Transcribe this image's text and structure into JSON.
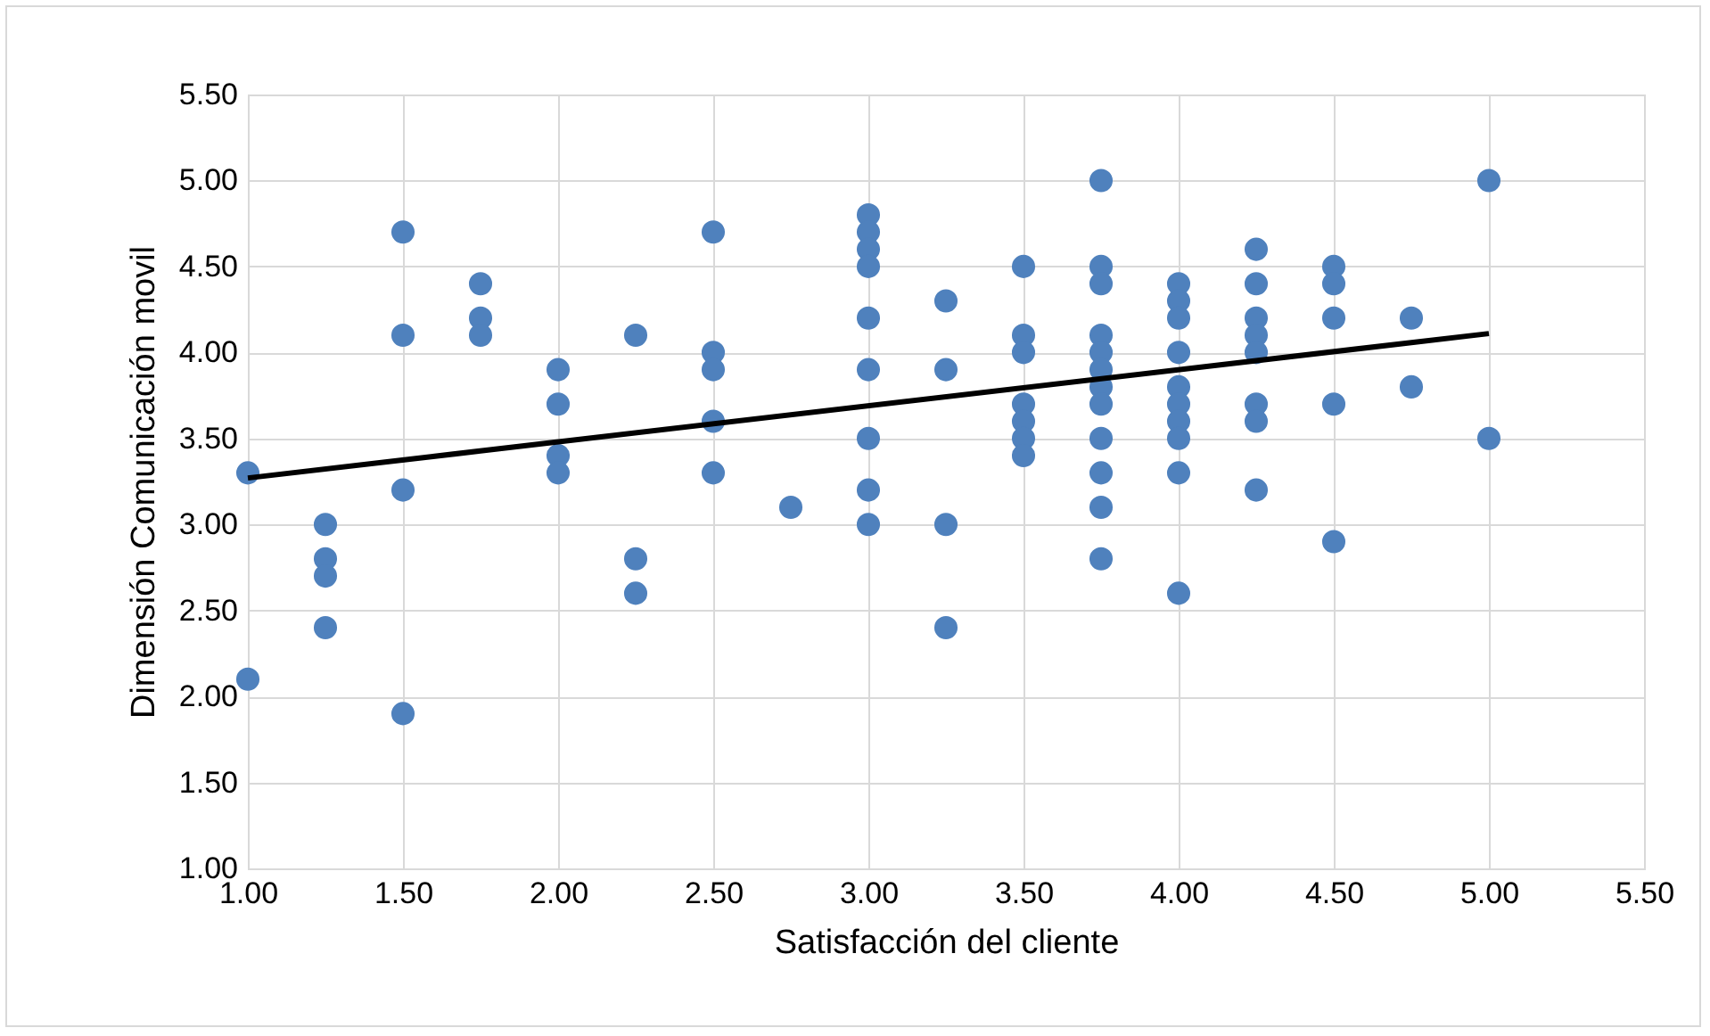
{
  "chart_data": {
    "type": "scatter",
    "xlabel": "Satisfacción del cliente",
    "ylabel": "Dimensión Comunicación movil",
    "xlim": [
      1,
      5.5
    ],
    "ylim": [
      1,
      5.5
    ],
    "xticks": [
      {
        "value": 1,
        "label": "1.00"
      },
      {
        "value": 1.5,
        "label": "1.50"
      },
      {
        "value": 2,
        "label": "2.00"
      },
      {
        "value": 2.5,
        "label": "2.50"
      },
      {
        "value": 3,
        "label": "3.00"
      },
      {
        "value": 3.5,
        "label": "3.50"
      },
      {
        "value": 4,
        "label": "4.00"
      },
      {
        "value": 4.5,
        "label": "4.50"
      },
      {
        "value": 5,
        "label": "5.00"
      },
      {
        "value": 5.5,
        "label": "5.50"
      }
    ],
    "yticks": [
      {
        "value": 1,
        "label": "1.00"
      },
      {
        "value": 1.5,
        "label": "1.50"
      },
      {
        "value": 2,
        "label": "2.00"
      },
      {
        "value": 2.5,
        "label": "2.50"
      },
      {
        "value": 3,
        "label": "3.00"
      },
      {
        "value": 3.5,
        "label": "3.50"
      },
      {
        "value": 4,
        "label": "4.00"
      },
      {
        "value": 4.5,
        "label": "4.50"
      },
      {
        "value": 5,
        "label": "5.00"
      },
      {
        "value": 5.5,
        "label": "5.50"
      }
    ],
    "grid": true,
    "marker": "circle",
    "series": [
      {
        "color": "#4f81bd",
        "x": [
          1,
          1,
          1.25,
          1.25,
          1.25,
          1.25,
          1.5,
          1.5,
          1.5,
          1.5,
          1.75,
          1.75,
          1.75,
          2,
          2,
          2,
          2,
          2.25,
          2.25,
          2.25,
          2.5,
          2.5,
          2.5,
          2.5,
          2.5,
          2.75,
          3,
          3,
          3,
          3,
          3,
          3,
          3,
          3,
          3,
          3.25,
          3.25,
          3.25,
          3.25,
          3.5,
          3.5,
          3.5,
          3.5,
          3.5,
          3.5,
          3.5,
          3.75,
          3.75,
          3.75,
          3.75,
          3.75,
          3.75,
          3.75,
          3.75,
          3.75,
          3.75,
          3.75,
          3.75,
          4,
          4,
          4,
          4,
          4,
          4,
          4,
          4,
          4,
          4,
          4.25,
          4.25,
          4.25,
          4.25,
          4.25,
          4.25,
          4.25,
          4.25,
          4.5,
          4.5,
          4.5,
          4.5,
          4.5,
          4.75,
          4.75,
          5,
          5
        ],
        "values": [
          3.3,
          2.1,
          3.0,
          2.8,
          2.7,
          2.4,
          4.7,
          4.1,
          3.2,
          1.9,
          4.4,
          4.2,
          4.1,
          3.9,
          3.7,
          3.4,
          3.3,
          4.1,
          2.8,
          2.6,
          4.7,
          4.0,
          3.9,
          3.6,
          3.3,
          3.1,
          4.8,
          4.7,
          4.6,
          4.5,
          4.2,
          3.9,
          3.5,
          3.2,
          3.0,
          4.3,
          3.9,
          3.0,
          2.4,
          4.5,
          4.1,
          4.0,
          3.7,
          3.6,
          3.5,
          3.4,
          5.0,
          4.5,
          4.4,
          4.1,
          4.0,
          3.9,
          3.8,
          3.7,
          3.5,
          3.3,
          3.1,
          2.8,
          4.4,
          4.3,
          4.2,
          4.0,
          3.8,
          3.7,
          3.6,
          3.5,
          3.3,
          2.6,
          4.6,
          4.4,
          4.2,
          4.1,
          4.0,
          3.7,
          3.6,
          3.2,
          4.5,
          4.4,
          4.2,
          3.7,
          2.9,
          4.2,
          3.8,
          5.0,
          3.5
        ]
      },
      {
        "type": "line",
        "marker": "none",
        "color": "#000000",
        "x": [
          1,
          5
        ],
        "values": [
          3.27,
          4.11
        ]
      }
    ]
  }
}
